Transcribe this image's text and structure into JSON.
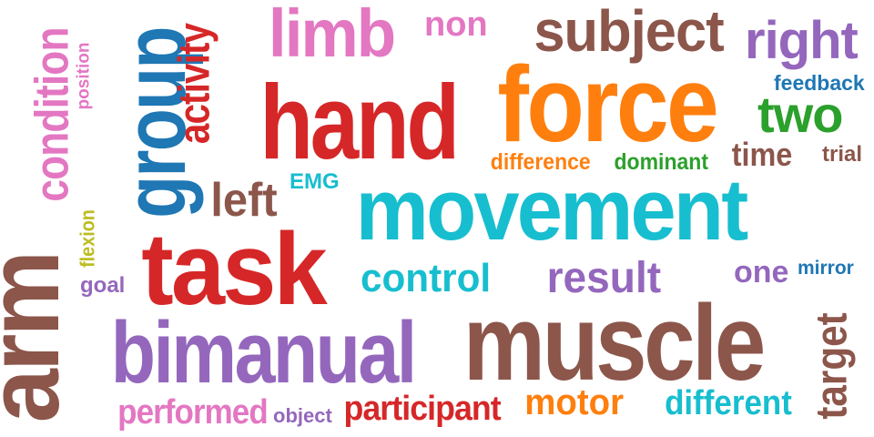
{
  "palette": {
    "red": "#d62728",
    "orange": "#ff7f0e",
    "teal": "#17becf",
    "purple": "#9467bd",
    "brown": "#8c564b",
    "pink": "#e377c2",
    "blue": "#1f77b4",
    "green": "#2ca02c",
    "olive": "#bcbd22"
  },
  "words": [
    {
      "text": "hand",
      "color": "#d62728"
    },
    {
      "text": "force",
      "color": "#ff7f0e"
    },
    {
      "text": "movement",
      "color": "#17becf"
    },
    {
      "text": "task",
      "color": "#d62728"
    },
    {
      "text": "muscle",
      "color": "#8c564b"
    },
    {
      "text": "bimanual",
      "color": "#9467bd"
    },
    {
      "text": "arm",
      "color": "#8c564b"
    },
    {
      "text": "group",
      "color": "#1f77b4"
    },
    {
      "text": "limb",
      "color": "#e377c2"
    },
    {
      "text": "subject",
      "color": "#8c564b"
    },
    {
      "text": "right",
      "color": "#9467bd"
    },
    {
      "text": "two",
      "color": "#2ca02c"
    },
    {
      "text": "activity",
      "color": "#d62728"
    },
    {
      "text": "condition",
      "color": "#e377c2"
    },
    {
      "text": "non",
      "color": "#e377c2"
    },
    {
      "text": "position",
      "color": "#e377c2"
    },
    {
      "text": "feedback",
      "color": "#1f77b4"
    },
    {
      "text": "time",
      "color": "#8c564b"
    },
    {
      "text": "trial",
      "color": "#8c564b"
    },
    {
      "text": "difference",
      "color": "#ff7f0e"
    },
    {
      "text": "dominant",
      "color": "#2ca02c"
    },
    {
      "text": "left",
      "color": "#8c564b"
    },
    {
      "text": "EMG",
      "color": "#17becf"
    },
    {
      "text": "flexion",
      "color": "#bcbd22"
    },
    {
      "text": "goal",
      "color": "#9467bd"
    },
    {
      "text": "control",
      "color": "#17becf"
    },
    {
      "text": "result",
      "color": "#9467bd"
    },
    {
      "text": "one",
      "color": "#9467bd"
    },
    {
      "text": "mirror",
      "color": "#1f77b4"
    },
    {
      "text": "target",
      "color": "#8c564b"
    },
    {
      "text": "performed",
      "color": "#e377c2"
    },
    {
      "text": "object",
      "color": "#9467bd"
    },
    {
      "text": "participant",
      "color": "#d62728"
    },
    {
      "text": "motor",
      "color": "#ff7f0e"
    },
    {
      "text": "different",
      "color": "#17becf"
    }
  ]
}
